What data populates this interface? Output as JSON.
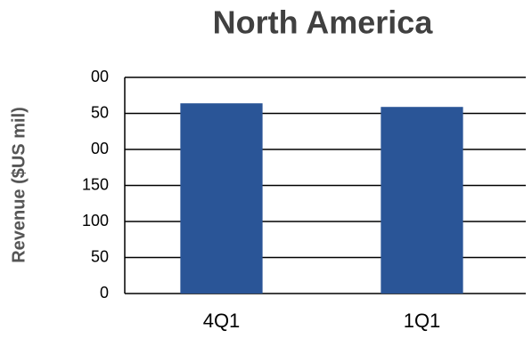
{
  "chart_data": {
    "type": "bar",
    "title": "North America",
    "y_label": "Revenue ($US mil)",
    "categories": [
      "4Q1",
      "1Q1"
    ],
    "values": [
      264,
      259
    ],
    "color": "#2a5597",
    "ylim": [
      0,
      300
    ],
    "yticks": [
      0,
      50,
      100,
      150,
      {
        "value": 200,
        "label": "00"
      },
      {
        "value": 250,
        "label": "50"
      },
      {
        "value": 300,
        "label": "00"
      }
    ],
    "grid": true
  }
}
